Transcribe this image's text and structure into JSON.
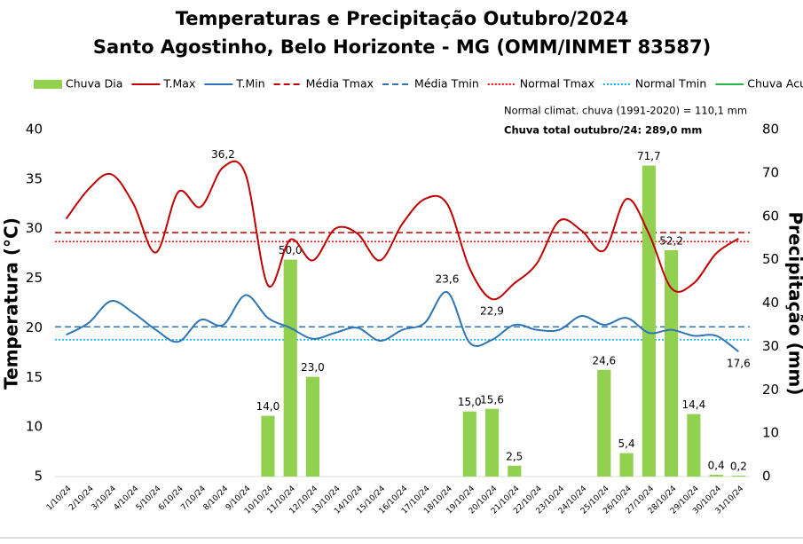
{
  "chart_data": {
    "type": "bar-line",
    "title": "Temperaturas e Precipitação Outubro/2024",
    "subtitle": "Santo Agostinho, Belo Horizonte - MG (OMM/INMET 83587)",
    "y_label": "Temperatura (°C)",
    "y2_label": "Precipitação (mm)",
    "annotations": [
      {
        "text": "Normal climat. chuva (1991-2020) = 110,1 mm",
        "color": "#000000"
      },
      {
        "text": "Chuva total outubro/24: 289,0 mm",
        "color": "#2db34a"
      }
    ],
    "categories": [
      "1/10/24",
      "2/10/24",
      "3/10/24",
      "4/10/24",
      "5/10/24",
      "6/10/24",
      "7/10/24",
      "8/10/24",
      "9/10/24",
      "10/10/24",
      "11/10/24",
      "12/10/24",
      "13/10/24",
      "14/10/24",
      "15/10/24",
      "16/10/24",
      "17/10/24",
      "18/10/24",
      "19/10/24",
      "20/10/24",
      "21/10/24",
      "22/10/24",
      "23/10/24",
      "24/10/24",
      "25/10/24",
      "26/10/24",
      "27/10/24",
      "28/10/24",
      "29/10/24",
      "30/10/24",
      "31/10/24"
    ],
    "ylim": [
      5,
      40
    ],
    "yticks": [
      5,
      10,
      15,
      20,
      25,
      30,
      35,
      40
    ],
    "y2lim": [
      0,
      80
    ],
    "y2ticks": [
      0,
      10,
      20,
      30,
      40,
      50,
      60,
      70,
      80
    ],
    "series": [
      {
        "name": "Chuva Dia",
        "type": "bar",
        "axis": "y2",
        "color": "#92d050",
        "values": [
          0,
          0,
          0,
          0,
          0,
          0,
          0,
          0,
          0,
          14.0,
          50.0,
          23.0,
          0,
          0,
          0,
          0,
          0,
          0,
          15.0,
          15.6,
          2.5,
          0,
          0,
          0,
          24.6,
          5.4,
          71.7,
          52.2,
          14.4,
          0.4,
          0.2
        ],
        "value_labels": [
          null,
          null,
          null,
          null,
          null,
          null,
          null,
          null,
          null,
          "14,0",
          "50,0",
          "23,0",
          null,
          null,
          null,
          null,
          null,
          null,
          "15,0",
          "15,6",
          "2,5",
          null,
          null,
          null,
          "24,6",
          "5,4",
          "71,7",
          "52,2",
          "14,4",
          "0,4",
          "0,2"
        ],
        "label_color": "#70ad47"
      },
      {
        "name": "T.Max",
        "type": "line",
        "axis": "y",
        "color": "#c00000",
        "values": [
          31.0,
          34.0,
          35.5,
          32.5,
          27.6,
          33.7,
          32.2,
          36.2,
          35.5,
          24.3,
          28.9,
          26.8,
          30.0,
          29.5,
          26.8,
          30.5,
          33.0,
          32.5,
          26.0,
          22.9,
          24.5,
          26.5,
          30.8,
          29.8,
          27.8,
          33.0,
          29.5,
          24.0,
          24.5,
          27.5,
          29.0
        ],
        "value_labels": [
          null,
          null,
          null,
          null,
          null,
          null,
          null,
          "36,2",
          null,
          null,
          null,
          null,
          null,
          null,
          null,
          null,
          null,
          null,
          null,
          "22,9",
          null,
          null,
          null,
          null,
          null,
          null,
          null,
          null,
          null,
          null,
          null
        ],
        "label_color": "#e00000"
      },
      {
        "name": "T.Min",
        "type": "line",
        "axis": "y",
        "color": "#2e75b6",
        "values": [
          19.3,
          20.5,
          22.7,
          21.5,
          19.8,
          18.6,
          20.8,
          20.3,
          23.3,
          21.0,
          20.0,
          18.9,
          19.5,
          20.0,
          18.7,
          19.8,
          20.5,
          23.6,
          18.5,
          18.8,
          20.3,
          19.8,
          19.8,
          21.2,
          20.3,
          21.0,
          19.5,
          19.8,
          19.2,
          19.2,
          17.6
        ],
        "value_labels": [
          null,
          null,
          null,
          null,
          null,
          null,
          null,
          null,
          null,
          null,
          null,
          null,
          null,
          null,
          null,
          null,
          null,
          "23,6",
          null,
          null,
          null,
          null,
          null,
          null,
          null,
          null,
          null,
          null,
          null,
          null,
          "17,6"
        ],
        "label_color": "#2e75b6"
      },
      {
        "name": "Média Tmax",
        "type": "hline",
        "axis": "y",
        "color": "#c00000",
        "dash": "dashed",
        "value": 29.6
      },
      {
        "name": "Média Tmin",
        "type": "hline",
        "axis": "y",
        "color": "#2e75b6",
        "dash": "dashed",
        "value": 20.1
      },
      {
        "name": "Normal Tmax",
        "type": "hline",
        "axis": "y",
        "color": "#ff0000",
        "dash": "dotted",
        "value": 28.7
      },
      {
        "name": "Normal Tmin",
        "type": "hline",
        "axis": "y",
        "color": "#00b0f0",
        "dash": "dotted",
        "value": 18.8
      },
      {
        "name": "Chuva Acumulada",
        "type": "legend-only",
        "color": "#2db34a"
      }
    ]
  }
}
